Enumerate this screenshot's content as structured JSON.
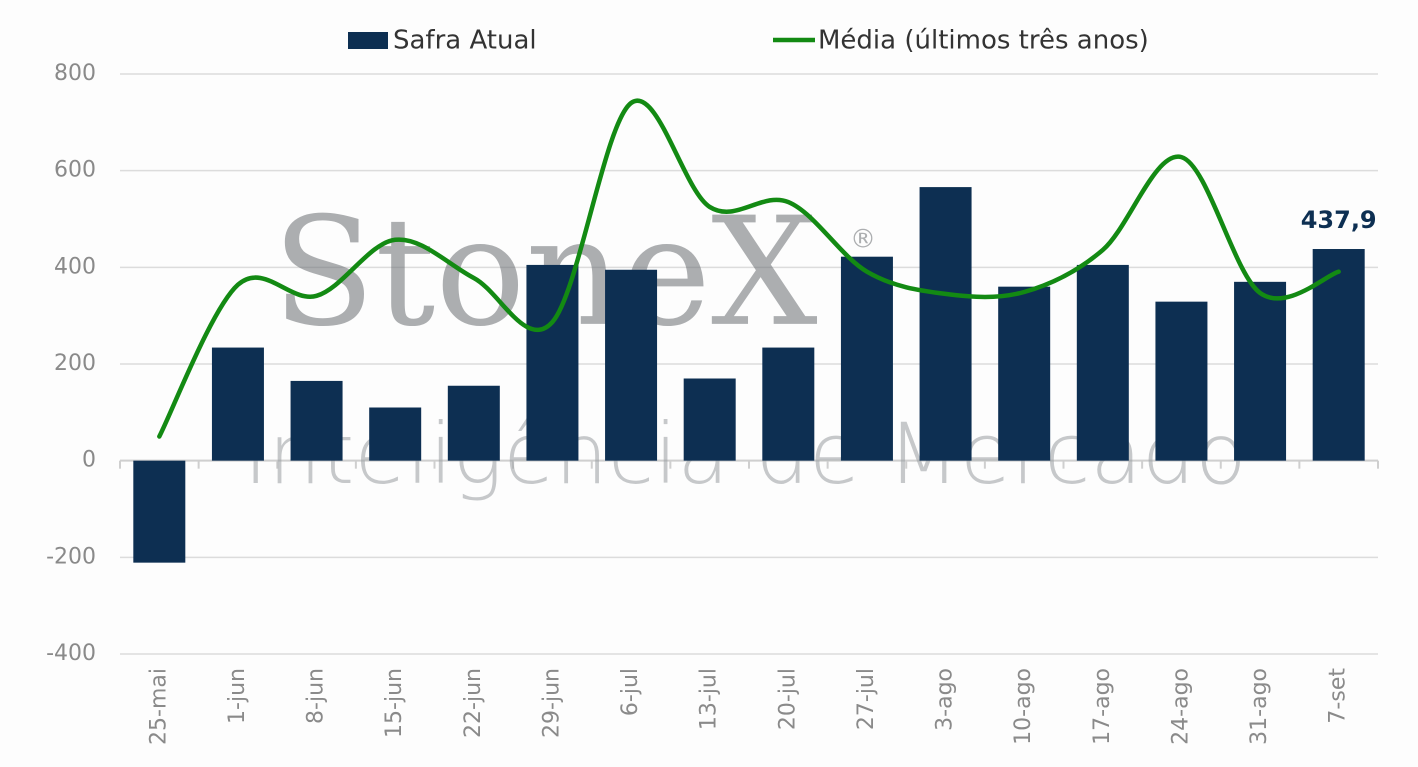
{
  "chart_data": {
    "type": "bar",
    "legend": "top",
    "grid": true,
    "categories": [
      "25-mai",
      "1-jun",
      "8-jun",
      "15-jun",
      "22-jun",
      "29-jun",
      "6-jul",
      "13-jul",
      "20-jul",
      "27-jul",
      "3-ago",
      "10-ago",
      "17-ago",
      "24-ago",
      "31-ago",
      "7-set"
    ],
    "series": [
      {
        "name": "Safra Atual",
        "type": "bar",
        "color": "#0d2f52",
        "values": [
          -211,
          234,
          165,
          110,
          155,
          405,
          395,
          170,
          234,
          422,
          566,
          360,
          405,
          329,
          370,
          437.9
        ],
        "value_labels": [
          null,
          null,
          null,
          null,
          null,
          null,
          null,
          null,
          null,
          null,
          null,
          null,
          null,
          null,
          null,
          "437,9"
        ]
      },
      {
        "name": "Média (últimos três anos)",
        "type": "line",
        "color": "#138a13",
        "values": [
          50,
          364,
          341,
          457,
          378,
          287,
          740,
          525,
          535,
          391,
          345,
          349,
          436,
          628,
          347,
          391
        ]
      }
    ],
    "ylim": [
      -400,
      800
    ],
    "yticks": [
      -400,
      -200,
      0,
      200,
      400,
      600,
      800
    ],
    "watermark": {
      "brand": "StoneX",
      "mark": "®",
      "tagline": "Inteligência de Mercado"
    }
  }
}
